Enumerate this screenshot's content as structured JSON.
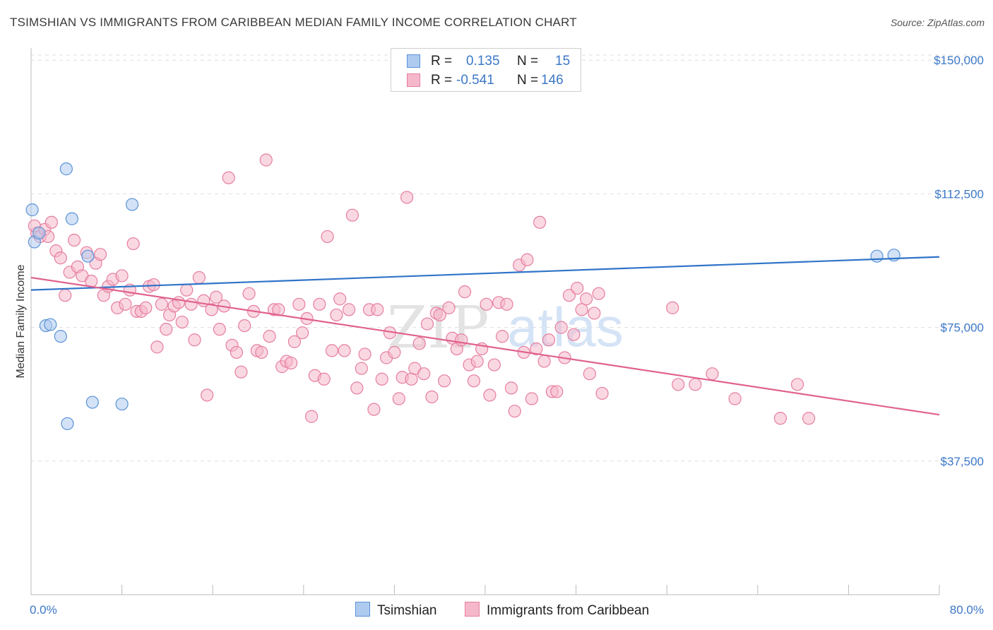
{
  "header": {
    "title": "TSIMSHIAN VS IMMIGRANTS FROM CARIBBEAN MEDIAN FAMILY INCOME CORRELATION CHART",
    "source": "Source: ZipAtlas.com"
  },
  "legend": {
    "rows": [
      {
        "r_label": "R =",
        "r_value": "0.135",
        "n_label": "N =",
        "n_value": "15"
      },
      {
        "r_label": "R =",
        "r_value": "-0.541",
        "n_label": "N =",
        "n_value": "146"
      }
    ],
    "bottom": [
      {
        "label": "Tsimshian"
      },
      {
        "label": "Immigrants from Caribbean"
      }
    ]
  },
  "watermark": {
    "zip": "ZIP",
    "atlas": "atlas"
  },
  "colors": {
    "blue_fill": "#aecbef",
    "blue_stroke": "#5b93d6",
    "blue_line": "#2f74c8",
    "pink_fill": "#f5b8cb",
    "pink_stroke": "#e67ea0",
    "pink_line": "#e0628e",
    "tick_text": "#3c78c8"
  },
  "chart_data": {
    "type": "scatter",
    "title": "TSIMSHIAN VS IMMIGRANTS FROM CARIBBEAN MEDIAN FAMILY INCOME CORRELATION CHART",
    "xlabel": "",
    "ylabel": "Median Family Income",
    "xlim": [
      0,
      80
    ],
    "ylim": [
      0,
      155000
    ],
    "x_tick_labels": [
      "0.0%",
      "80.0%"
    ],
    "y_ticks": [
      37500,
      75000,
      112500,
      150000
    ],
    "y_tick_labels": [
      "$37,500",
      "$75,000",
      "$112,500",
      "$150,000"
    ],
    "series": [
      {
        "name": "Tsimshian",
        "color": "blue",
        "points": [
          [
            0.1,
            108000
          ],
          [
            0.3,
            99000
          ],
          [
            0.7,
            101500
          ],
          [
            1.3,
            75500
          ],
          [
            1.7,
            75800
          ],
          [
            2.6,
            72500
          ],
          [
            3.1,
            119500
          ],
          [
            3.2,
            48000
          ],
          [
            3.6,
            105500
          ],
          [
            5.0,
            95000
          ],
          [
            5.4,
            54000
          ],
          [
            8.0,
            53500
          ],
          [
            8.9,
            109500
          ],
          [
            74.5,
            95000
          ],
          [
            76.0,
            95300
          ]
        ],
        "trend": {
          "x": [
            0,
            80
          ],
          "y": [
            85500,
            94800
          ]
        }
      },
      {
        "name": "Immigrants from Caribbean",
        "color": "pink",
        "points": [
          [
            0.5,
            101500
          ],
          [
            0.8,
            100500
          ],
          [
            1.2,
            102500
          ],
          [
            1.5,
            100500
          ],
          [
            1.8,
            104500
          ],
          [
            2.2,
            96500
          ],
          [
            2.6,
            94500
          ],
          [
            3.0,
            84000
          ],
          [
            3.4,
            90500
          ],
          [
            3.8,
            99500
          ],
          [
            4.1,
            92000
          ],
          [
            4.5,
            89500
          ],
          [
            4.9,
            96000
          ],
          [
            5.3,
            88000
          ],
          [
            5.7,
            93000
          ],
          [
            6.1,
            95500
          ],
          [
            6.4,
            84000
          ],
          [
            6.8,
            86500
          ],
          [
            7.2,
            88500
          ],
          [
            7.6,
            80500
          ],
          [
            8.0,
            89500
          ],
          [
            8.3,
            81500
          ],
          [
            8.7,
            85500
          ],
          [
            9.0,
            98500
          ],
          [
            9.3,
            79500
          ],
          [
            9.7,
            79500
          ],
          [
            10.1,
            80500
          ],
          [
            10.4,
            86500
          ],
          [
            10.8,
            87000
          ],
          [
            11.1,
            69500
          ],
          [
            11.5,
            81500
          ],
          [
            11.9,
            74500
          ],
          [
            12.2,
            78500
          ],
          [
            12.6,
            81000
          ],
          [
            13.0,
            82000
          ],
          [
            13.3,
            76500
          ],
          [
            13.7,
            85500
          ],
          [
            14.1,
            81500
          ],
          [
            14.4,
            71500
          ],
          [
            14.8,
            89000
          ],
          [
            15.2,
            82500
          ],
          [
            15.5,
            56000
          ],
          [
            15.9,
            80000
          ],
          [
            16.3,
            83500
          ],
          [
            16.6,
            74500
          ],
          [
            17.0,
            81000
          ],
          [
            17.4,
            117000
          ],
          [
            17.7,
            70000
          ],
          [
            18.1,
            68000
          ],
          [
            18.5,
            62500
          ],
          [
            18.8,
            75500
          ],
          [
            19.2,
            84500
          ],
          [
            19.6,
            79500
          ],
          [
            19.9,
            68500
          ],
          [
            20.3,
            68000
          ],
          [
            20.7,
            122000
          ],
          [
            21.0,
            72500
          ],
          [
            21.4,
            80000
          ],
          [
            21.8,
            80000
          ],
          [
            22.1,
            64000
          ],
          [
            22.5,
            65500
          ],
          [
            22.9,
            65000
          ],
          [
            23.2,
            71000
          ],
          [
            23.6,
            81500
          ],
          [
            23.9,
            73500
          ],
          [
            24.3,
            77500
          ],
          [
            24.7,
            50000
          ],
          [
            25.0,
            61500
          ],
          [
            25.4,
            81500
          ],
          [
            25.8,
            60500
          ],
          [
            26.1,
            100500
          ],
          [
            26.5,
            68500
          ],
          [
            26.9,
            78500
          ],
          [
            27.2,
            83000
          ],
          [
            27.6,
            68500
          ],
          [
            28.0,
            80000
          ],
          [
            28.3,
            106500
          ],
          [
            28.7,
            58000
          ],
          [
            29.1,
            63500
          ],
          [
            29.4,
            67500
          ],
          [
            29.8,
            80000
          ],
          [
            30.2,
            52000
          ],
          [
            30.5,
            80000
          ],
          [
            30.9,
            60500
          ],
          [
            31.3,
            66500
          ],
          [
            31.6,
            73500
          ],
          [
            32.0,
            68000
          ],
          [
            32.4,
            55000
          ],
          [
            32.7,
            61000
          ],
          [
            33.1,
            111500
          ],
          [
            33.5,
            60500
          ],
          [
            33.8,
            63500
          ],
          [
            34.2,
            70500
          ],
          [
            34.6,
            62000
          ],
          [
            34.9,
            76000
          ],
          [
            35.3,
            55500
          ],
          [
            35.7,
            79000
          ],
          [
            36.0,
            78500
          ],
          [
            36.4,
            60000
          ],
          [
            36.8,
            80500
          ],
          [
            37.1,
            72000
          ],
          [
            37.5,
            69000
          ],
          [
            37.9,
            71500
          ],
          [
            38.2,
            85000
          ],
          [
            38.6,
            64500
          ],
          [
            39.0,
            60000
          ],
          [
            39.3,
            65500
          ],
          [
            39.7,
            69000
          ],
          [
            40.1,
            81500
          ],
          [
            40.4,
            56000
          ],
          [
            40.8,
            64500
          ],
          [
            41.2,
            82000
          ],
          [
            41.5,
            72500
          ],
          [
            41.9,
            81500
          ],
          [
            42.3,
            58000
          ],
          [
            42.6,
            51500
          ],
          [
            43.0,
            92500
          ],
          [
            43.4,
            68000
          ],
          [
            43.7,
            94000
          ],
          [
            44.1,
            55000
          ],
          [
            44.5,
            69000
          ],
          [
            44.8,
            104500
          ],
          [
            45.2,
            65500
          ],
          [
            45.6,
            71500
          ],
          [
            45.9,
            57000
          ],
          [
            46.3,
            57000
          ],
          [
            46.7,
            75000
          ],
          [
            47.0,
            66500
          ],
          [
            47.4,
            84000
          ],
          [
            47.8,
            73000
          ],
          [
            48.1,
            86000
          ],
          [
            48.5,
            80000
          ],
          [
            48.9,
            83000
          ],
          [
            49.2,
            62000
          ],
          [
            49.6,
            79000
          ],
          [
            50.0,
            84500
          ],
          [
            50.3,
            56500
          ],
          [
            56.5,
            80500
          ],
          [
            57.0,
            59000
          ],
          [
            58.5,
            59000
          ],
          [
            60.0,
            62000
          ],
          [
            62.0,
            55000
          ],
          [
            66.0,
            49500
          ],
          [
            67.5,
            59000
          ],
          [
            68.5,
            49500
          ],
          [
            0.3,
            103500
          ]
        ],
        "trend": {
          "x": [
            0,
            80
          ],
          "y": [
            89000,
            50500
          ]
        }
      }
    ]
  }
}
